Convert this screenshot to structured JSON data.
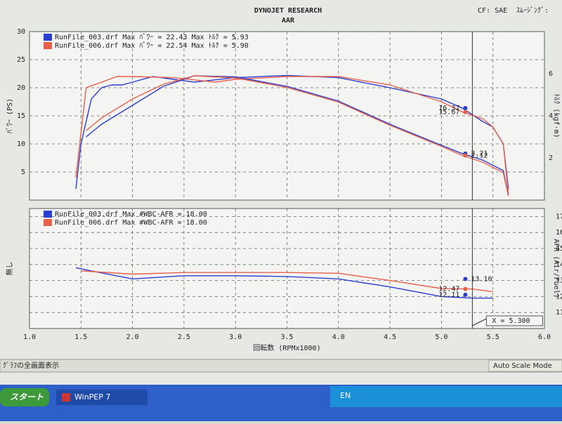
{
  "header": {
    "title": "DYNOJET RESEARCH",
    "subtitle": "AAR",
    "correction": "CF: SAE",
    "smoothing": "ｽﾑｰｼﾞﾝｸﾞ:"
  },
  "status_bar": {
    "left": "ｸﾞﾗﾌの全画面表示",
    "right": "Auto Scale Mode"
  },
  "taskbar": {
    "start": "スタート",
    "window": "WinPEP 7",
    "language": "EN"
  },
  "chart_data": [
    {
      "type": "line",
      "ylabel": "ﾊﾟﾜｰ (PS)",
      "y2label": "ﾄﾙｸ (kgf·m)",
      "xlim": [
        1,
        6
      ],
      "ylim": [
        0,
        30
      ],
      "yticks": [
        5,
        10,
        15,
        20,
        25,
        30
      ],
      "y2lim": [
        0,
        8
      ],
      "y2ticks": [
        2,
        4,
        6
      ],
      "grid": true,
      "series": [
        {
          "name": "RunFile_003.drf Max ﾊﾟﾜｰ = 22.43   Max ﾄﾙｸ = 5.93",
          "color": "#2a3fd0",
          "x": [
            1.45,
            1.5,
            1.6,
            1.7,
            1.8,
            1.9,
            2.0,
            2.2,
            2.4,
            2.6,
            3.0,
            3.5,
            4.0,
            4.5,
            5.0,
            5.2,
            5.4,
            5.5,
            5.6,
            5.65
          ],
          "values": [
            2,
            10,
            18,
            20,
            20.5,
            20.5,
            21,
            22,
            21.5,
            21,
            21.8,
            22.2,
            21.8,
            20,
            18,
            16.4,
            14,
            13,
            10,
            2
          ]
        },
        {
          "name": "RunFile_006.drf Max ﾊﾟﾜｰ = 22.54   Max ﾄﾙｸ = 5.90",
          "color": "#e8604a",
          "x": [
            1.45,
            1.5,
            1.55,
            1.7,
            1.85,
            2.0,
            2.4,
            2.8,
            3.0,
            3.5,
            4.0,
            4.5,
            5.0,
            5.2,
            5.4,
            5.5,
            5.6,
            5.65
          ],
          "values": [
            4,
            12,
            20,
            21,
            22,
            22,
            21.8,
            21,
            21.5,
            22,
            22,
            20.5,
            17.5,
            15.7,
            14.5,
            13,
            10,
            1
          ]
        },
        {
          "color": "#2a3fd0",
          "axis": "y2",
          "x": [
            1.55,
            1.7,
            2.0,
            2.3,
            2.6,
            3.0,
            3.5,
            4.0,
            4.5,
            5.0,
            5.2,
            5.4,
            5.6,
            5.65
          ],
          "values": [
            3.0,
            3.6,
            4.5,
            5.4,
            5.9,
            5.85,
            5.4,
            4.7,
            3.6,
            2.6,
            2.21,
            1.9,
            1.4,
            0.2
          ]
        },
        {
          "color": "#e8604a",
          "axis": "y2",
          "x": [
            1.55,
            1.7,
            2.0,
            2.3,
            2.6,
            3.0,
            3.5,
            4.0,
            4.5,
            5.0,
            5.2,
            5.4,
            5.6,
            5.65
          ],
          "values": [
            3.3,
            3.9,
            4.8,
            5.5,
            5.9,
            5.8,
            5.35,
            4.65,
            3.55,
            2.55,
            2.12,
            1.8,
            1.3,
            0.2
          ]
        }
      ],
      "cursor_points": [
        {
          "value": 16.37,
          "color": "#2a3fd0"
        },
        {
          "value": 15.67,
          "color": "#e8604a"
        },
        {
          "value": 2.21,
          "color": "#2a3fd0",
          "axis": "y2"
        },
        {
          "value": 2.12,
          "color": "#e8604a",
          "axis": "y2"
        }
      ]
    },
    {
      "type": "line",
      "ylabel": "無し",
      "y2label": "AFR (Air/Fuel)",
      "xlabel": "回転数 (RPMx1000)",
      "xlim": [
        1,
        6
      ],
      "xticks": [
        {
          "value": 1,
          "label": "1.0"
        },
        1.5,
        {
          "value": 2,
          "label": "2.0"
        },
        2.5,
        {
          "value": 3,
          "label": "3.0"
        },
        3.5,
        {
          "value": 4,
          "label": "4.0"
        },
        4.5,
        {
          "value": 5,
          "label": "5.0"
        },
        5.5,
        {
          "value": 6,
          "label": "6.0"
        }
      ],
      "ylim": [
        10,
        17.5
      ],
      "yticks": [
        11,
        12,
        13,
        14,
        15,
        16,
        17
      ],
      "grid": true,
      "cursor": {
        "value": 5.3,
        "label": "X = 5.300"
      },
      "series": [
        {
          "name": "RunFile_003.drf Max #WBC-AFR = 18.00",
          "color": "#2a3fd0",
          "x": [
            1.45,
            1.6,
            2.0,
            2.5,
            3.0,
            3.5,
            4.0,
            4.5,
            5.0,
            5.3,
            5.5
          ],
          "values": [
            13.8,
            13.6,
            13.1,
            13.3,
            13.3,
            13.25,
            13.1,
            12.6,
            12.0,
            11.9,
            11.9
          ]
        },
        {
          "name": "RunFile_006.drf Max #WBC-AFR = 18.00",
          "color": "#e8604a",
          "x": [
            1.5,
            2.0,
            2.5,
            3.0,
            3.5,
            4.0,
            4.5,
            5.0,
            5.3,
            5.5
          ],
          "values": [
            13.6,
            13.4,
            13.5,
            13.5,
            13.5,
            13.45,
            13.0,
            12.5,
            12.47,
            12.3
          ]
        }
      ],
      "cursor_points": [
        {
          "value": 13.1,
          "label": "13.10",
          "color": "#2a3fd0"
        },
        {
          "value": 12.47,
          "color": "#e8604a"
        },
        {
          "value": 12.11,
          "color": "#2a3fd0"
        }
      ]
    }
  ]
}
